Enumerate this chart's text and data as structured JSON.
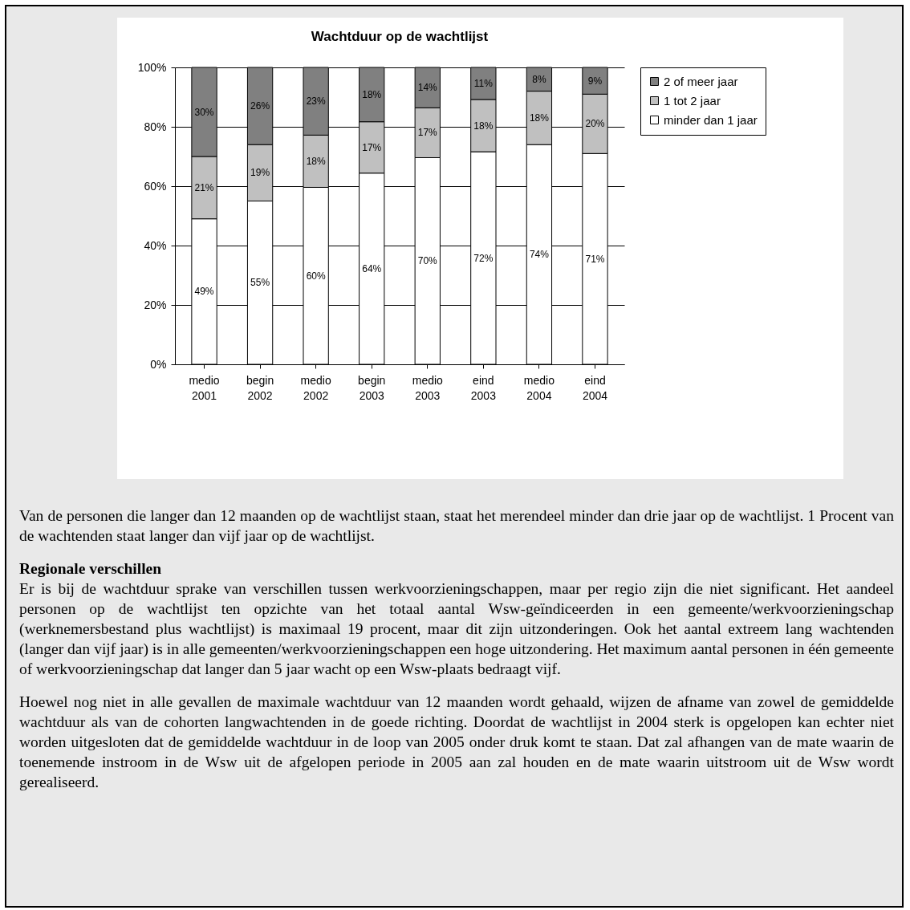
{
  "chart_data": {
    "type": "bar",
    "title": "Wachtduur op de wachtlijst",
    "stacked": true,
    "categories": [
      "medio 2001",
      "begin 2002",
      "medio 2002",
      "begin 2003",
      "medio 2003",
      "eind 2003",
      "medio 2004",
      "eind 2004"
    ],
    "series": [
      {
        "name": "minder dan 1 jaar",
        "color": "#ffffff",
        "values": [
          49,
          55,
          59.6,
          64.4,
          69.6,
          71.6,
          74,
          71
        ],
        "value_labels": [
          "49%",
          "55%",
          "60%",
          "64%",
          "70%",
          "72%",
          "74%",
          "71%"
        ]
      },
      {
        "name": "1 tot 2 jaar",
        "color": "#c0c0c0",
        "values": [
          21,
          19,
          17.6,
          17.3,
          16.8,
          17.6,
          18,
          20
        ],
        "value_labels": [
          "21%",
          "19%",
          "18%",
          "17%",
          "17%",
          "18%",
          "18%",
          "20%"
        ]
      },
      {
        "name": "2 of meer jaar",
        "color": "#808080",
        "values": [
          30,
          26,
          22.8,
          18.3,
          13.6,
          10.8,
          8,
          9
        ],
        "value_labels": [
          "30%",
          "26%",
          "23%",
          "18%",
          "14%",
          "11%",
          "8%",
          "9%"
        ]
      }
    ],
    "ylim": [
      0,
      100
    ],
    "yticks": [
      {
        "value": 0,
        "label": "0%"
      },
      {
        "value": 20,
        "label": "20%"
      },
      {
        "value": 40,
        "label": "40%"
      },
      {
        "value": 60,
        "label": "60%"
      },
      {
        "value": 80,
        "label": "80%"
      },
      {
        "value": 100,
        "label": "100%"
      }
    ],
    "grid": "y",
    "legend": "right",
    "annotations": [
      "Van de personen die langer dan 12 maanden op de wachtlijst staan, staat het merendeel minder dan drie jaar op de wachtlijst. 1 Procent van de wachtenden staat langer dan vijf jaar op de wachtlijst.",
      "Regionale verschillen",
      "Er is bij de wachtduur sprake van verschillen tussen werkvoorzieningschappen, maar per regio zijn die niet significant. Het aandeel personen op de wachtlijst ten opzichte van het totaal aantal Wsw-geïndiceerden in een gemeente/werkvoorzieningschap (werknemersbestand plus wachtlijst) is maximaal 19 procent, maar dit zijn uitzonderingen. Ook het aantal extreem lang wachtenden (langer dan vijf jaar) is in alle gemeenten/werkvoorzieningschappen een hoge uitzondering. Het maximum aantal personen in één gemeente of werkvoorzieningschap dat langer dan 5 jaar wacht op een Wsw-plaats bedraagt vijf.",
      "Hoewel nog niet in alle gevallen de maximale wachtduur van 12 maanden wordt gehaald, wijzen de afname van zowel de gemiddelde wachtduur als van de cohorten langwachtenden in de goede richting. Doordat de wachtlijst in 2004 sterk is opgelopen kan echter niet worden uitgesloten dat de gemiddelde wachtduur in de loop van 2005 onder druk komt te staan. Dat zal afhangen van de mate waarin de toenemende instroom in de Wsw uit de afgelopen periode in 2005 aan zal houden en de mate waarin uitstroom uit de Wsw wordt gerealiseerd."
    ]
  }
}
